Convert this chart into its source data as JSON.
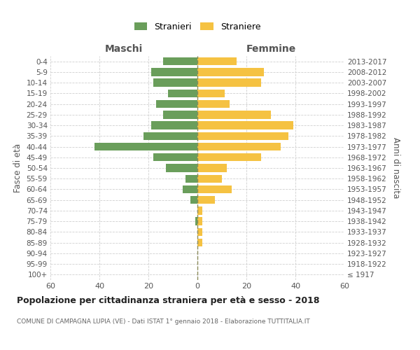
{
  "age_groups": [
    "100+",
    "95-99",
    "90-94",
    "85-89",
    "80-84",
    "75-79",
    "70-74",
    "65-69",
    "60-64",
    "55-59",
    "50-54",
    "45-49",
    "40-44",
    "35-39",
    "30-34",
    "25-29",
    "20-24",
    "15-19",
    "10-14",
    "5-9",
    "0-4"
  ],
  "birth_years": [
    "≤ 1917",
    "1918-1922",
    "1923-1927",
    "1928-1932",
    "1933-1937",
    "1938-1942",
    "1943-1947",
    "1948-1952",
    "1953-1957",
    "1958-1962",
    "1963-1967",
    "1968-1972",
    "1973-1977",
    "1978-1982",
    "1983-1987",
    "1988-1992",
    "1993-1997",
    "1998-2002",
    "2003-2007",
    "2008-2012",
    "2013-2017"
  ],
  "males": [
    0,
    0,
    0,
    0,
    0,
    1,
    0,
    3,
    6,
    5,
    13,
    18,
    42,
    22,
    19,
    14,
    17,
    12,
    18,
    19,
    14
  ],
  "females": [
    0,
    0,
    0,
    2,
    2,
    2,
    2,
    7,
    14,
    10,
    12,
    26,
    34,
    37,
    39,
    30,
    13,
    11,
    26,
    27,
    16
  ],
  "male_color": "#6a9e5b",
  "female_color": "#f5c242",
  "title": "Popolazione per cittadinanza straniera per età e sesso - 2018",
  "subtitle": "COMUNE DI CAMPAGNA LUPIA (VE) - Dati ISTAT 1° gennaio 2018 - Elaborazione TUTTITALIA.IT",
  "xlabel_left": "Maschi",
  "xlabel_right": "Femmine",
  "ylabel_left": "Fasce di età",
  "ylabel_right": "Anni di nascita",
  "legend_male": "Stranieri",
  "legend_female": "Straniere",
  "xlim": 60,
  "background_color": "#ffffff",
  "grid_color": "#d0d0d0",
  "bar_height": 0.75
}
